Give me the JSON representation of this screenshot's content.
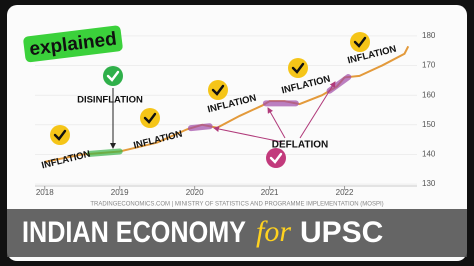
{
  "chart_data": {
    "type": "line",
    "badge": "explained",
    "x": [
      2018.0,
      2018.5,
      2018.75,
      2019.0,
      2019.5,
      2019.9,
      2020.1,
      2020.3,
      2020.6,
      2020.9,
      2021.0,
      2021.2,
      2021.4,
      2021.7,
      2021.9,
      2022.0,
      2022.2,
      2022.5,
      2022.8,
      2022.85
    ],
    "series": [
      {
        "color": "#e39a3b",
        "values": [
          137.5,
          140,
          140.5,
          141,
          144,
          148.5,
          150,
          149,
          153,
          156.5,
          158,
          158,
          157,
          160,
          163,
          166,
          166.5,
          170,
          174,
          176.5
        ]
      }
    ],
    "highlights": [
      {
        "x": [
          2018.6,
          2019.0
        ],
        "color": "#3ab54a"
      },
      {
        "x": [
          2019.95,
          2020.2
        ],
        "color": "#a04aa8"
      },
      {
        "x": [
          2020.95,
          2021.35
        ],
        "color": "#a04aa8"
      },
      {
        "x": [
          2021.8,
          2022.05
        ],
        "color": "#a04aa8"
      }
    ],
    "xlim": [
      2017.87,
      2022.9
    ],
    "xticks": [
      2018,
      2019,
      2020,
      2021,
      2022
    ],
    "ylim": [
      128,
      182
    ],
    "yticks": [
      130,
      140,
      150,
      160,
      170,
      180
    ],
    "grid": true,
    "annotations": [
      "INFLATION",
      "DISINFLATION",
      "INFLATION",
      "INFLATION",
      "INFLATION",
      "DEFLATION",
      "INFLATION"
    ],
    "source": "TRADINGECONOMICS.COM | MINISTRY OF STATISTICS AND PROGRAMME IMPLEMENTATION (MOSPI)",
    "banner": [
      "INDIAN ECONOMY",
      "for",
      "UPSC"
    ]
  }
}
